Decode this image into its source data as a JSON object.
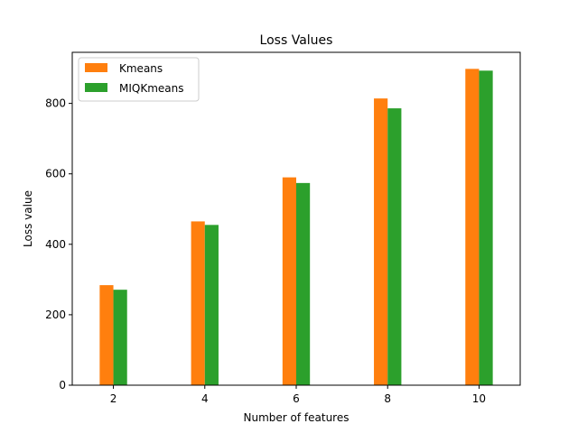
{
  "chart_data": {
    "type": "bar",
    "title": "Loss Values",
    "xlabel": "Number of features",
    "ylabel": "Loss value",
    "categories": [
      2,
      4,
      6,
      8,
      10
    ],
    "x_ticks": [
      "2",
      "4",
      "6",
      "8",
      "10"
    ],
    "y_ticks": [
      0,
      200,
      400,
      600,
      800
    ],
    "ylim": [
      0,
      945
    ],
    "xlim": [
      1.1,
      10.9
    ],
    "grid": false,
    "legend_position": "top-left",
    "series": [
      {
        "name": "Kmeans",
        "color": "#ff7f0e",
        "values": [
          284,
          465,
          590,
          814,
          898
        ]
      },
      {
        "name": "MIQKmeans",
        "color": "#2ca02c",
        "values": [
          271,
          455,
          574,
          786,
          893
        ]
      }
    ]
  }
}
